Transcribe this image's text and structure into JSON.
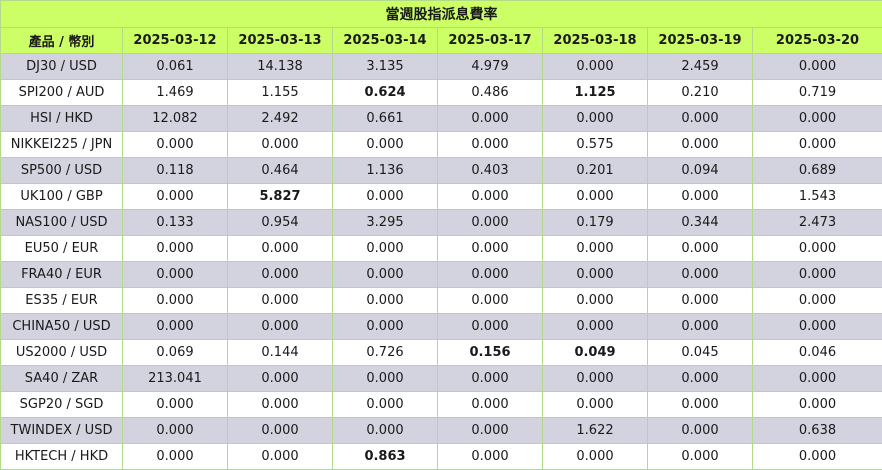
{
  "title": "當週股指派息費率",
  "product_header": "產品 / 幣別",
  "dates": [
    "2025-03-12",
    "2025-03-13",
    "2025-03-14",
    "2025-03-17",
    "2025-03-18",
    "2025-03-19",
    "2025-03-20"
  ],
  "rows": [
    {
      "product": "DJ30 / USD",
      "values": [
        "0.061",
        "14.138",
        "3.135",
        "4.979",
        "0.000",
        "2.459",
        "0.000"
      ],
      "bold": []
    },
    {
      "product": "SPI200 / AUD",
      "values": [
        "1.469",
        "1.155",
        "0.624",
        "0.486",
        "1.125",
        "0.210",
        "0.719"
      ],
      "bold": [
        2,
        4
      ]
    },
    {
      "product": "HSI / HKD",
      "values": [
        "12.082",
        "2.492",
        "0.661",
        "0.000",
        "0.000",
        "0.000",
        "0.000"
      ],
      "bold": []
    },
    {
      "product": "NIKKEI225 / JPN",
      "values": [
        "0.000",
        "0.000",
        "0.000",
        "0.000",
        "0.575",
        "0.000",
        "0.000"
      ],
      "bold": []
    },
    {
      "product": "SP500 / USD",
      "values": [
        "0.118",
        "0.464",
        "1.136",
        "0.403",
        "0.201",
        "0.094",
        "0.689"
      ],
      "bold": []
    },
    {
      "product": "UK100 / GBP",
      "values": [
        "0.000",
        "5.827",
        "0.000",
        "0.000",
        "0.000",
        "0.000",
        "1.543"
      ],
      "bold": [
        1
      ]
    },
    {
      "product": "NAS100 / USD",
      "values": [
        "0.133",
        "0.954",
        "3.295",
        "0.000",
        "0.179",
        "0.344",
        "2.473"
      ],
      "bold": []
    },
    {
      "product": "EU50 / EUR",
      "values": [
        "0.000",
        "0.000",
        "0.000",
        "0.000",
        "0.000",
        "0.000",
        "0.000"
      ],
      "bold": []
    },
    {
      "product": "FRA40 / EUR",
      "values": [
        "0.000",
        "0.000",
        "0.000",
        "0.000",
        "0.000",
        "0.000",
        "0.000"
      ],
      "bold": []
    },
    {
      "product": "ES35 / EUR",
      "values": [
        "0.000",
        "0.000",
        "0.000",
        "0.000",
        "0.000",
        "0.000",
        "0.000"
      ],
      "bold": []
    },
    {
      "product": "CHINA50 / USD",
      "values": [
        "0.000",
        "0.000",
        "0.000",
        "0.000",
        "0.000",
        "0.000",
        "0.000"
      ],
      "bold": []
    },
    {
      "product": "US2000 / USD",
      "values": [
        "0.069",
        "0.144",
        "0.726",
        "0.156",
        "0.049",
        "0.045",
        "0.046"
      ],
      "bold": [
        3,
        4
      ]
    },
    {
      "product": "SA40 / ZAR",
      "values": [
        "213.041",
        "0.000",
        "0.000",
        "0.000",
        "0.000",
        "0.000",
        "0.000"
      ],
      "bold": []
    },
    {
      "product": "SGP20 / SGD",
      "values": [
        "0.000",
        "0.000",
        "0.000",
        "0.000",
        "0.000",
        "0.000",
        "0.000"
      ],
      "bold": []
    },
    {
      "product": "TWINDEX / USD",
      "values": [
        "0.000",
        "0.000",
        "0.000",
        "0.000",
        "1.622",
        "0.000",
        "0.638"
      ],
      "bold": []
    },
    {
      "product": "HKTECH / HKD",
      "values": [
        "0.000",
        "0.000",
        "0.863",
        "0.000",
        "0.000",
        "0.000",
        "0.000"
      ],
      "bold": [
        2
      ]
    }
  ]
}
